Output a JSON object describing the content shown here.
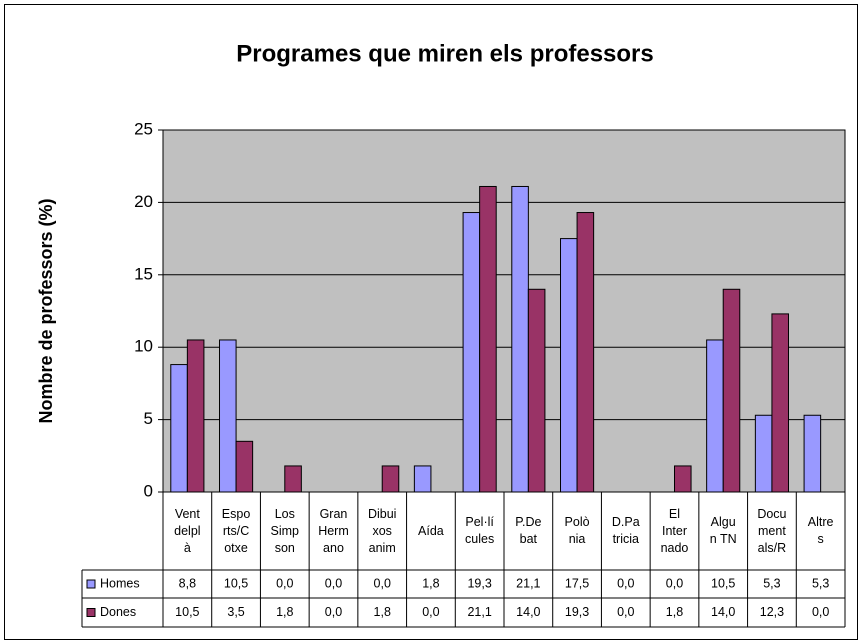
{
  "chart_data": {
    "type": "bar",
    "title": "Programes que miren els professors",
    "y_label": "Nombre de professors (%)",
    "categories": [
      "Vent\ndelpl\nà",
      "Espo\nrts/C\notxe",
      "Los\nSimp\nson",
      "Gran\nHerm\nano",
      "Dibui\nxos\nanim",
      "Aída",
      "Pel·lí\ncules",
      "P.De\nbat",
      "Polò\nnia",
      "D.Pa\ntricia",
      "El\nInter\nnado",
      "Algu\nn TN",
      "Docu\nment\nals/R",
      "Altre\ns"
    ],
    "series": [
      {
        "name": "Homes",
        "color": "#9999ff",
        "values": [
          8.8,
          10.5,
          0.0,
          0.0,
          0.0,
          1.8,
          19.3,
          21.1,
          17.5,
          0.0,
          0.0,
          10.5,
          5.3,
          5.3
        ],
        "value_labels": [
          "8,8",
          "10,5",
          "0,0",
          "0,0",
          "0,0",
          "1,8",
          "19,3",
          "21,1",
          "17,5",
          "0,0",
          "0,0",
          "10,5",
          "5,3",
          "5,3"
        ]
      },
      {
        "name": "Dones",
        "color": "#993366",
        "values": [
          10.5,
          3.5,
          1.8,
          0.0,
          1.8,
          0.0,
          21.1,
          14.0,
          19.3,
          0.0,
          1.8,
          14.0,
          12.3,
          0.0
        ],
        "value_labels": [
          "10,5",
          "3,5",
          "1,8",
          "0,0",
          "1,8",
          "0,0",
          "21,1",
          "14,0",
          "19,3",
          "0,0",
          "1,8",
          "14,0",
          "12,3",
          "0,0"
        ]
      }
    ],
    "ylim": [
      0,
      25
    ],
    "yticks": [
      0,
      5,
      10,
      15,
      20,
      25
    ],
    "grid": true,
    "plot_background": "#c0c0c0"
  }
}
